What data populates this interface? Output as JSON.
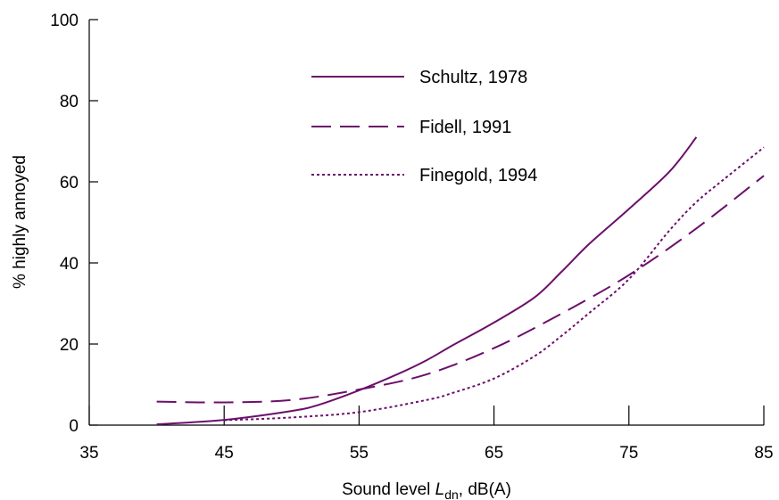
{
  "chart_data": {
    "type": "line",
    "title": "",
    "xlabel": {
      "prefix": "Sound level ",
      "var": "L",
      "sub": "dn",
      "suffix": ", dB(A)"
    },
    "ylabel": "% highly annoyed",
    "xlim": [
      35,
      85
    ],
    "ylim": [
      0,
      100
    ],
    "x_ticks": [
      35,
      45,
      55,
      65,
      75,
      85
    ],
    "y_ticks": [
      0,
      20,
      40,
      60,
      80,
      100
    ],
    "grid": false,
    "legend_position": "top-center",
    "line_color": "#6b0f6b",
    "series": [
      {
        "name": "Schultz, 1978",
        "style": "solid",
        "points": [
          [
            40,
            0.2
          ],
          [
            45,
            1.3
          ],
          [
            50,
            3.5
          ],
          [
            52,
            5
          ],
          [
            55,
            8.6
          ],
          [
            58,
            12.8
          ],
          [
            60,
            16
          ],
          [
            62,
            19.8
          ],
          [
            65,
            25.3
          ],
          [
            68,
            31.5
          ],
          [
            70,
            37.8
          ],
          [
            72,
            44.5
          ],
          [
            75,
            53.3
          ],
          [
            78,
            62.5
          ],
          [
            80,
            71
          ]
        ]
      },
      {
        "name": "Fidell, 1991",
        "style": "dashed",
        "points": [
          [
            40,
            5.8
          ],
          [
            45,
            5.6
          ],
          [
            50,
            6.2
          ],
          [
            55,
            8.8
          ],
          [
            60,
            12.5
          ],
          [
            65,
            19
          ],
          [
            70,
            27.5
          ],
          [
            75,
            37
          ],
          [
            80,
            48.5
          ],
          [
            85,
            61.5
          ]
        ]
      },
      {
        "name": "Finegold, 1994",
        "style": "dotted",
        "points": [
          [
            45,
            1.2
          ],
          [
            50,
            1.9
          ],
          [
            55,
            3.2
          ],
          [
            60,
            6.2
          ],
          [
            62,
            8
          ],
          [
            65,
            11.5
          ],
          [
            68,
            17
          ],
          [
            70,
            22
          ],
          [
            72,
            27.5
          ],
          [
            75,
            36
          ],
          [
            78,
            48
          ],
          [
            80,
            55
          ],
          [
            82,
            60.5
          ],
          [
            85,
            68.5
          ]
        ]
      }
    ]
  }
}
